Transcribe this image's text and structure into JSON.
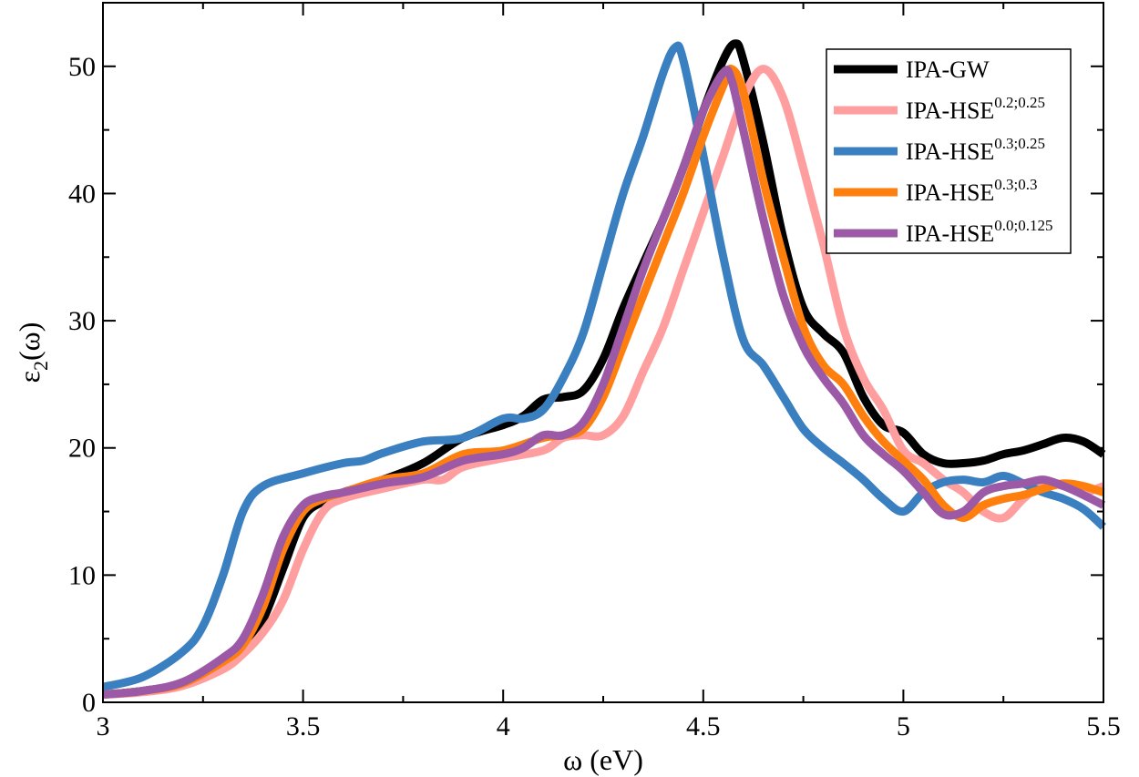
{
  "chart_data": {
    "type": "line",
    "title": "",
    "xlabel": "ω (eV)",
    "ylabel_main": "ε",
    "ylabel_sub": "2",
    "ylabel_tail": "(ω)",
    "xlim": [
      3,
      5.5
    ],
    "ylim": [
      0,
      55
    ],
    "xticks": [
      3,
      3.5,
      4,
      4.5,
      5,
      5.5
    ],
    "xtick_labels": [
      "3",
      "3.5",
      "4",
      "4.5",
      "5",
      "5.5"
    ],
    "yticks": [
      0,
      10,
      20,
      30,
      40,
      50
    ],
    "ytick_labels": [
      "0",
      "10",
      "20",
      "30",
      "40",
      "50"
    ],
    "grid": false,
    "legend_position": "top-right",
    "series": [
      {
        "name": "IPA-GW",
        "name_base": "IPA-GW",
        "name_sup": "",
        "color": "#000000",
        "points": [
          [
            3.0,
            0.6
          ],
          [
            3.1,
            0.9
          ],
          [
            3.2,
            1.5
          ],
          [
            3.3,
            3.0
          ],
          [
            3.35,
            4.2
          ],
          [
            3.4,
            6.5
          ],
          [
            3.45,
            10.5
          ],
          [
            3.5,
            14.5
          ],
          [
            3.55,
            15.8
          ],
          [
            3.6,
            16.5
          ],
          [
            3.7,
            17.5
          ],
          [
            3.8,
            18.8
          ],
          [
            3.9,
            20.8
          ],
          [
            4.0,
            21.8
          ],
          [
            4.05,
            22.5
          ],
          [
            4.1,
            23.8
          ],
          [
            4.15,
            24.0
          ],
          [
            4.2,
            24.5
          ],
          [
            4.25,
            27.0
          ],
          [
            4.3,
            31.0
          ],
          [
            4.35,
            34.5
          ],
          [
            4.4,
            38.0
          ],
          [
            4.45,
            42.0
          ],
          [
            4.5,
            46.5
          ],
          [
            4.55,
            50.5
          ],
          [
            4.58,
            51.8
          ],
          [
            4.6,
            50.5
          ],
          [
            4.65,
            44.0
          ],
          [
            4.7,
            36.5
          ],
          [
            4.75,
            31.0
          ],
          [
            4.8,
            29.0
          ],
          [
            4.85,
            27.5
          ],
          [
            4.9,
            24.0
          ],
          [
            4.95,
            21.8
          ],
          [
            5.0,
            21.2
          ],
          [
            5.05,
            19.5
          ],
          [
            5.1,
            18.8
          ],
          [
            5.15,
            18.8
          ],
          [
            5.2,
            19.0
          ],
          [
            5.25,
            19.5
          ],
          [
            5.3,
            19.8
          ],
          [
            5.35,
            20.3
          ],
          [
            5.4,
            20.8
          ],
          [
            5.45,
            20.5
          ],
          [
            5.5,
            19.5
          ]
        ]
      },
      {
        "name": "IPA-HSE0.2;0.25",
        "name_base": "IPA-HSE",
        "name_sup": "0.2;0.25",
        "color": "#ff9e9e",
        "points": [
          [
            3.0,
            0.6
          ],
          [
            3.1,
            0.8
          ],
          [
            3.2,
            1.3
          ],
          [
            3.3,
            2.6
          ],
          [
            3.35,
            3.8
          ],
          [
            3.4,
            5.5
          ],
          [
            3.45,
            8.0
          ],
          [
            3.5,
            12.0
          ],
          [
            3.55,
            15.0
          ],
          [
            3.6,
            16.0
          ],
          [
            3.7,
            16.8
          ],
          [
            3.8,
            17.5
          ],
          [
            3.85,
            17.5
          ],
          [
            3.9,
            18.5
          ],
          [
            4.0,
            19.2
          ],
          [
            4.1,
            19.8
          ],
          [
            4.15,
            20.8
          ],
          [
            4.2,
            21.0
          ],
          [
            4.25,
            21.0
          ],
          [
            4.3,
            22.5
          ],
          [
            4.35,
            26.0
          ],
          [
            4.4,
            29.5
          ],
          [
            4.45,
            34.0
          ],
          [
            4.5,
            38.5
          ],
          [
            4.55,
            43.0
          ],
          [
            4.6,
            47.5
          ],
          [
            4.65,
            49.8
          ],
          [
            4.7,
            47.5
          ],
          [
            4.75,
            42.0
          ],
          [
            4.8,
            36.0
          ],
          [
            4.85,
            29.5
          ],
          [
            4.9,
            25.5
          ],
          [
            4.95,
            23.0
          ],
          [
            5.0,
            19.8
          ],
          [
            5.05,
            18.8
          ],
          [
            5.1,
            17.5
          ],
          [
            5.15,
            16.5
          ],
          [
            5.2,
            15.0
          ],
          [
            5.25,
            14.5
          ],
          [
            5.3,
            16.0
          ],
          [
            5.35,
            17.2
          ],
          [
            5.4,
            17.0
          ],
          [
            5.45,
            16.5
          ],
          [
            5.5,
            17.0
          ]
        ]
      },
      {
        "name": "IPA-HSE0.3;0.25",
        "name_base": "IPA-HSE",
        "name_sup": "0.3;0.25",
        "color": "#3a7fbf",
        "points": [
          [
            3.0,
            1.2
          ],
          [
            3.1,
            2.0
          ],
          [
            3.2,
            4.0
          ],
          [
            3.25,
            6.0
          ],
          [
            3.3,
            10.0
          ],
          [
            3.35,
            15.0
          ],
          [
            3.4,
            17.0
          ],
          [
            3.5,
            18.0
          ],
          [
            3.6,
            18.8
          ],
          [
            3.65,
            19.0
          ],
          [
            3.7,
            19.6
          ],
          [
            3.8,
            20.5
          ],
          [
            3.9,
            20.8
          ],
          [
            4.0,
            22.3
          ],
          [
            4.05,
            22.3
          ],
          [
            4.1,
            23.0
          ],
          [
            4.15,
            25.5
          ],
          [
            4.2,
            29.0
          ],
          [
            4.25,
            34.5
          ],
          [
            4.3,
            40.0
          ],
          [
            4.35,
            44.5
          ],
          [
            4.4,
            49.5
          ],
          [
            4.43,
            51.5
          ],
          [
            4.45,
            50.5
          ],
          [
            4.5,
            43.0
          ],
          [
            4.55,
            35.0
          ],
          [
            4.6,
            28.5
          ],
          [
            4.65,
            26.5
          ],
          [
            4.7,
            24.0
          ],
          [
            4.75,
            21.5
          ],
          [
            4.8,
            20.0
          ],
          [
            4.85,
            18.8
          ],
          [
            4.9,
            17.5
          ],
          [
            4.95,
            16.0
          ],
          [
            5.0,
            15.0
          ],
          [
            5.05,
            16.5
          ],
          [
            5.1,
            17.3
          ],
          [
            5.15,
            17.5
          ],
          [
            5.2,
            17.3
          ],
          [
            5.25,
            17.8
          ],
          [
            5.3,
            17.2
          ],
          [
            5.35,
            16.5
          ],
          [
            5.4,
            16.0
          ],
          [
            5.45,
            15.2
          ],
          [
            5.5,
            13.8
          ]
        ]
      },
      {
        "name": "IPA-HSE0.3;0.3",
        "name_base": "IPA-HSE",
        "name_sup": "0.3;0.3",
        "color": "#ff7f0e",
        "points": [
          [
            3.0,
            0.6
          ],
          [
            3.1,
            0.9
          ],
          [
            3.2,
            1.5
          ],
          [
            3.3,
            3.2
          ],
          [
            3.35,
            4.5
          ],
          [
            3.4,
            7.5
          ],
          [
            3.45,
            12.0
          ],
          [
            3.5,
            15.0
          ],
          [
            3.55,
            16.0
          ],
          [
            3.6,
            16.5
          ],
          [
            3.7,
            17.5
          ],
          [
            3.8,
            18.0
          ],
          [
            3.9,
            19.5
          ],
          [
            4.0,
            19.8
          ],
          [
            4.1,
            20.8
          ],
          [
            4.15,
            21.0
          ],
          [
            4.2,
            21.5
          ],
          [
            4.25,
            24.0
          ],
          [
            4.3,
            28.0
          ],
          [
            4.35,
            32.0
          ],
          [
            4.4,
            36.0
          ],
          [
            4.45,
            40.0
          ],
          [
            4.5,
            44.5
          ],
          [
            4.55,
            48.5
          ],
          [
            4.57,
            49.8
          ],
          [
            4.6,
            48.0
          ],
          [
            4.65,
            41.0
          ],
          [
            4.7,
            35.0
          ],
          [
            4.75,
            29.5
          ],
          [
            4.8,
            26.5
          ],
          [
            4.85,
            25.0
          ],
          [
            4.9,
            22.5
          ],
          [
            4.95,
            20.5
          ],
          [
            5.0,
            19.0
          ],
          [
            5.05,
            17.5
          ],
          [
            5.1,
            15.5
          ],
          [
            5.15,
            14.5
          ],
          [
            5.2,
            15.5
          ],
          [
            5.25,
            16.0
          ],
          [
            5.3,
            16.3
          ],
          [
            5.35,
            16.8
          ],
          [
            5.4,
            17.2
          ],
          [
            5.45,
            17.0
          ],
          [
            5.5,
            16.5
          ]
        ]
      },
      {
        "name": "IPA-HSE0.0;0.125",
        "name_base": "IPA-HSE",
        "name_sup": "0.0;0.125",
        "color": "#9b59a6",
        "points": [
          [
            3.0,
            0.6
          ],
          [
            3.1,
            0.9
          ],
          [
            3.2,
            1.6
          ],
          [
            3.3,
            3.5
          ],
          [
            3.35,
            5.0
          ],
          [
            3.4,
            8.5
          ],
          [
            3.45,
            13.0
          ],
          [
            3.5,
            15.5
          ],
          [
            3.55,
            16.2
          ],
          [
            3.6,
            16.5
          ],
          [
            3.7,
            17.2
          ],
          [
            3.8,
            17.7
          ],
          [
            3.9,
            19.0
          ],
          [
            4.0,
            19.5
          ],
          [
            4.05,
            20.0
          ],
          [
            4.1,
            21.0
          ],
          [
            4.15,
            21.0
          ],
          [
            4.2,
            22.0
          ],
          [
            4.25,
            25.0
          ],
          [
            4.3,
            29.5
          ],
          [
            4.35,
            34.0
          ],
          [
            4.4,
            38.0
          ],
          [
            4.45,
            42.0
          ],
          [
            4.5,
            46.5
          ],
          [
            4.55,
            49.5
          ],
          [
            4.57,
            49.0
          ],
          [
            4.6,
            45.0
          ],
          [
            4.65,
            38.0
          ],
          [
            4.7,
            32.0
          ],
          [
            4.75,
            28.0
          ],
          [
            4.8,
            25.5
          ],
          [
            4.85,
            23.5
          ],
          [
            4.9,
            21.0
          ],
          [
            4.95,
            19.5
          ],
          [
            5.0,
            18.2
          ],
          [
            5.05,
            16.5
          ],
          [
            5.1,
            14.8
          ],
          [
            5.15,
            15.0
          ],
          [
            5.2,
            16.5
          ],
          [
            5.25,
            17.0
          ],
          [
            5.3,
            17.2
          ],
          [
            5.35,
            17.5
          ],
          [
            5.4,
            17.0
          ],
          [
            5.45,
            16.3
          ],
          [
            5.5,
            15.5
          ]
        ]
      }
    ]
  }
}
